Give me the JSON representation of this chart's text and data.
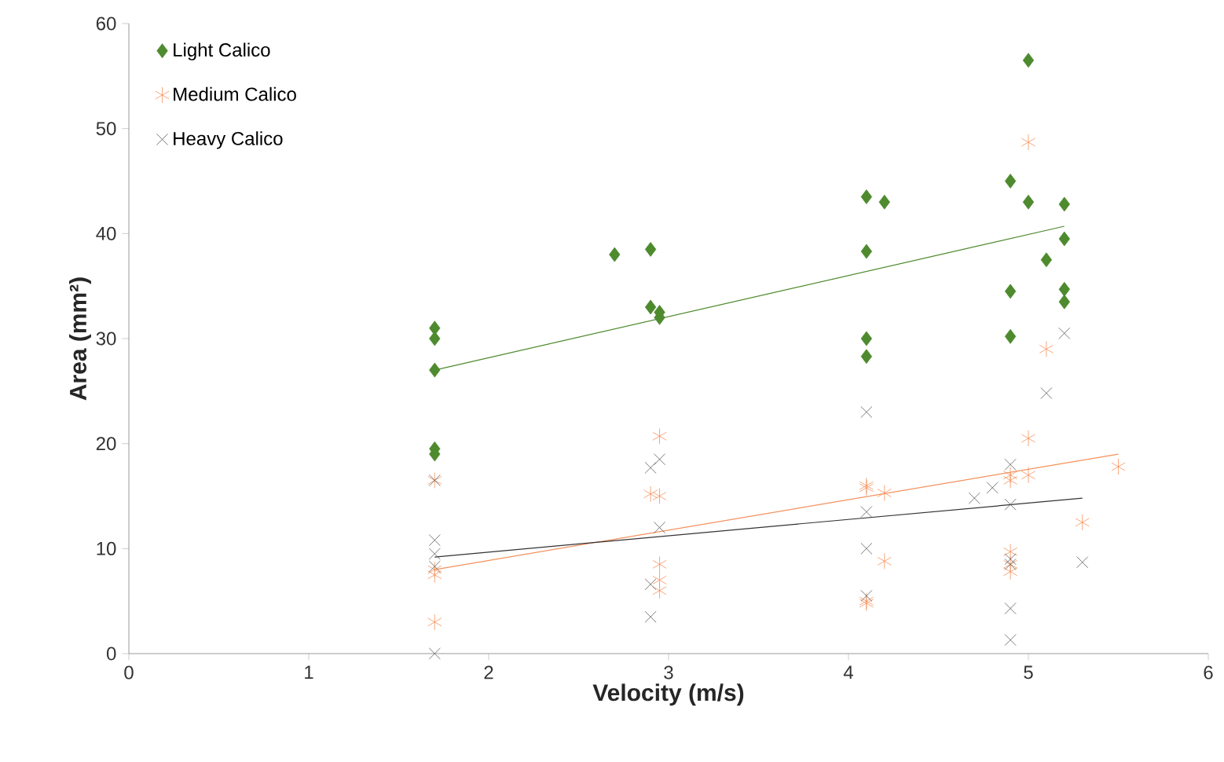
{
  "chart_data": {
    "type": "scatter",
    "xlabel": "Velocity (m/s)",
    "ylabel": "Area (mm²)",
    "xlim": [
      0,
      6
    ],
    "ylim": [
      0,
      60
    ],
    "xticks": [
      0,
      1,
      2,
      3,
      4,
      5,
      6
    ],
    "yticks": [
      0,
      10,
      20,
      30,
      40,
      50,
      60
    ],
    "grid": false,
    "legend": "top left",
    "series": [
      {
        "name": "Light Calico",
        "color": "#4e8a2e",
        "marker": "diamond",
        "x": [
          1.7,
          1.7,
          1.7,
          1.7,
          1.7,
          2.7,
          2.9,
          2.9,
          2.95,
          2.95,
          4.1,
          4.1,
          4.1,
          4.1,
          4.2,
          4.9,
          4.9,
          4.9,
          5.0,
          5.0,
          5.1,
          5.2,
          5.2,
          5.2,
          5.2
        ],
        "values": [
          31,
          30,
          27,
          19.5,
          19,
          38,
          38.5,
          33,
          32.5,
          32,
          43.5,
          38.3,
          30,
          28.3,
          43,
          45,
          34.5,
          30.2,
          56.5,
          43,
          37.5,
          42.8,
          39.5,
          34.7,
          33.5
        ]
      },
      {
        "name": "Medium Calico",
        "color": "#f4915c",
        "x": [
          1.7,
          1.7,
          1.7,
          1.7,
          2.9,
          2.95,
          2.95,
          2.95,
          2.95,
          2.95,
          4.1,
          4.1,
          4.1,
          4.1,
          4.2,
          4.2,
          4.9,
          4.9,
          4.9,
          4.9,
          4.9,
          5.0,
          5.0,
          5.0,
          5.1,
          5.3,
          5.5
        ],
        "values": [
          16.5,
          8,
          7.5,
          3,
          15.2,
          20.7,
          15,
          8.5,
          7,
          6,
          16,
          15.8,
          5,
          4.8,
          15.3,
          8.8,
          17,
          16.5,
          9.7,
          8.5,
          7.8,
          20.5,
          17,
          48.7,
          29,
          12.5,
          17.8
        ]
      },
      {
        "name": "Heavy Calico",
        "color": "#595959",
        "marker": "cross",
        "x": [
          1.7,
          1.7,
          1.7,
          1.7,
          1.7,
          2.9,
          2.95,
          2.95,
          2.9,
          2.9,
          4.1,
          4.1,
          4.1,
          4.1,
          4.7,
          4.8,
          4.9,
          4.9,
          4.9,
          4.9,
          4.9,
          4.9,
          5.1,
          5.2,
          5.3
        ],
        "values": [
          16.5,
          10.8,
          9.5,
          8.3,
          0,
          17.7,
          18.5,
          12,
          6.6,
          3.5,
          23,
          13.5,
          10,
          5.5,
          14.8,
          15.8,
          18,
          14.2,
          9,
          8.5,
          4.3,
          1.3,
          24.8,
          30.5,
          8.7
        ]
      },
      {
        "type": "line",
        "color": "#4e8a2e",
        "marker": "none",
        "x": [
          1.7,
          5.2
        ],
        "values": [
          27,
          40.7
        ]
      },
      {
        "type": "line",
        "color": "#f4915c",
        "marker": "none",
        "x": [
          1.7,
          5.5
        ],
        "values": [
          8,
          19
        ]
      },
      {
        "type": "line",
        "color": "#333333",
        "marker": "none",
        "x": [
          1.7,
          5.3
        ],
        "values": [
          9.2,
          14.8
        ]
      }
    ]
  }
}
